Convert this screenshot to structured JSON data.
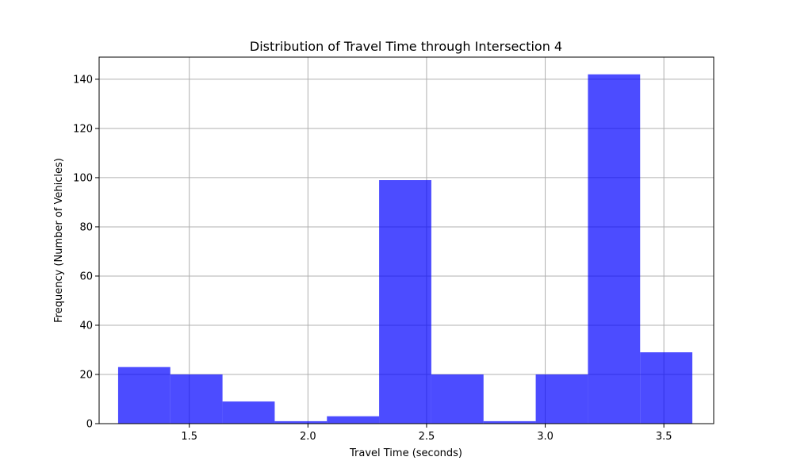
{
  "chart_data": {
    "type": "bar",
    "title": "Distribution of Travel Time through Intersection 4",
    "xlabel": "Travel Time (seconds)",
    "ylabel": "Frequency (Number of Vehicles)",
    "bin_edges": [
      1.2,
      1.42,
      1.64,
      1.86,
      2.08,
      2.3,
      2.52,
      2.74,
      2.96,
      3.18,
      3.4,
      3.62
    ],
    "values": [
      23,
      20,
      9,
      1,
      3,
      99,
      20,
      1,
      20,
      142,
      29
    ],
    "xlim": [
      1.12,
      3.71
    ],
    "ylim": [
      0,
      149
    ],
    "xticks": [
      1.5,
      2.0,
      2.5,
      3.0,
      3.5
    ],
    "xtick_labels": [
      "1.5",
      "2.0",
      "2.5",
      "3.0",
      "3.5"
    ],
    "yticks": [
      0,
      20,
      40,
      60,
      80,
      100,
      120,
      140
    ],
    "ytick_labels": [
      "0",
      "20",
      "40",
      "60",
      "80",
      "100",
      "120",
      "140"
    ],
    "grid": true,
    "bar_color": "#0000ff",
    "bar_opacity": 0.7
  }
}
